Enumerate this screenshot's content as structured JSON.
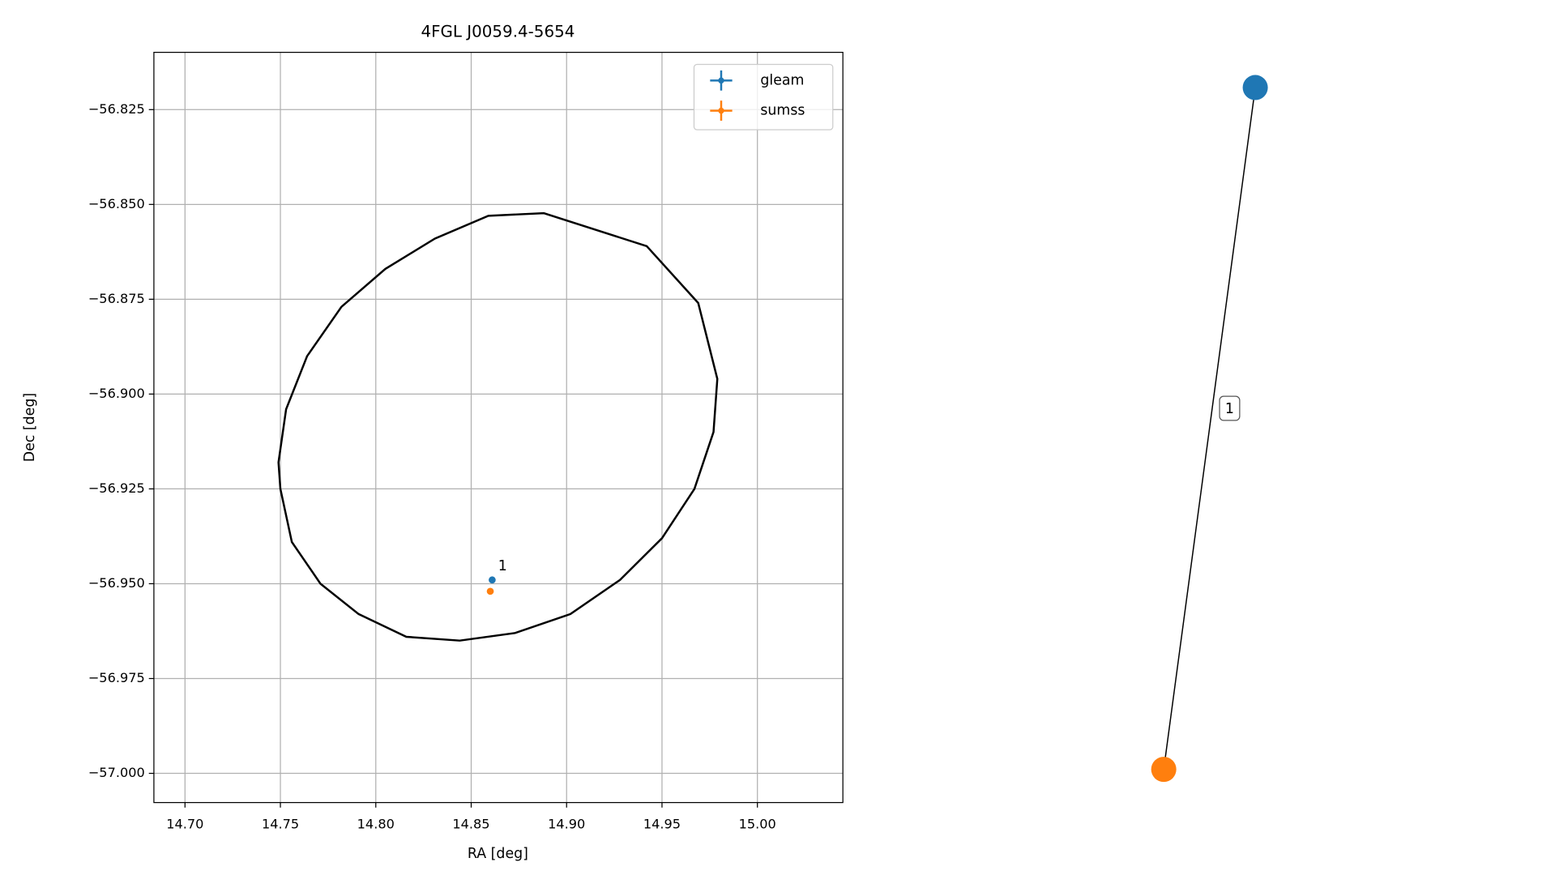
{
  "chart_data": [
    {
      "type": "scatter",
      "title": "4FGL J0059.4-5654",
      "xlabel": "RA [deg]",
      "ylabel": "Dec [deg]",
      "xlim": [
        14.6837,
        15.0448
      ],
      "ylim": [
        -57.0077,
        -56.8099
      ],
      "grid": true,
      "legend": "upper right",
      "xticks": [
        {
          "value": 14.7,
          "label": "14.70"
        },
        {
          "value": 14.75,
          "label": "14.75"
        },
        {
          "value": 14.8,
          "label": "14.80"
        },
        {
          "value": 14.85,
          "label": "14.85"
        },
        {
          "value": 14.9,
          "label": "14.90"
        },
        {
          "value": 14.95,
          "label": "14.95"
        },
        {
          "value": 15.0,
          "label": "15.00"
        }
      ],
      "yticks": [
        {
          "value": -56.825,
          "label": "−56.825"
        },
        {
          "value": -56.85,
          "label": "−56.850"
        },
        {
          "value": -56.875,
          "label": "−56.875"
        },
        {
          "value": -56.9,
          "label": "−56.900"
        },
        {
          "value": -56.925,
          "label": "−56.925"
        },
        {
          "value": -56.95,
          "label": "−56.950"
        },
        {
          "value": -56.975,
          "label": "−56.975"
        },
        {
          "value": -57.0,
          "label": "−57.000"
        }
      ],
      "series": [
        {
          "name": "gleam",
          "color": "#1f77b4",
          "x": [
            14.861
          ],
          "values": [
            -56.949
          ]
        },
        {
          "name": "sumss",
          "color": "#ff7f0e",
          "x": [
            14.86
          ],
          "values": [
            -56.952
          ]
        }
      ],
      "annotations": [
        {
          "text": "1",
          "x": 14.862,
          "y": -56.9475
        }
      ],
      "ellipse": {
        "color": "#000000",
        "x": [
          14.888,
          14.942,
          14.969,
          14.979,
          14.977,
          14.967,
          14.95,
          14.928,
          14.902,
          14.873,
          14.844,
          14.816,
          14.791,
          14.771,
          14.756,
          14.75,
          14.749,
          14.753,
          14.764,
          14.782,
          14.805,
          14.831,
          14.859
        ],
        "y": [
          -56.8523,
          -56.861,
          -56.876,
          -56.896,
          -56.91,
          -56.925,
          -56.938,
          -56.949,
          -56.958,
          -56.963,
          -56.965,
          -56.964,
          -56.958,
          -56.95,
          -56.939,
          -56.925,
          -56.918,
          -56.904,
          -56.89,
          -56.877,
          -56.867,
          -56.859,
          -56.853
        ]
      }
    },
    {
      "type": "graph",
      "nodes": [
        {
          "color": "#1f77b4"
        },
        {
          "color": "#ff7f0e"
        }
      ],
      "edges": [
        {
          "source": 0,
          "target": 1,
          "label": "1"
        }
      ]
    }
  ]
}
